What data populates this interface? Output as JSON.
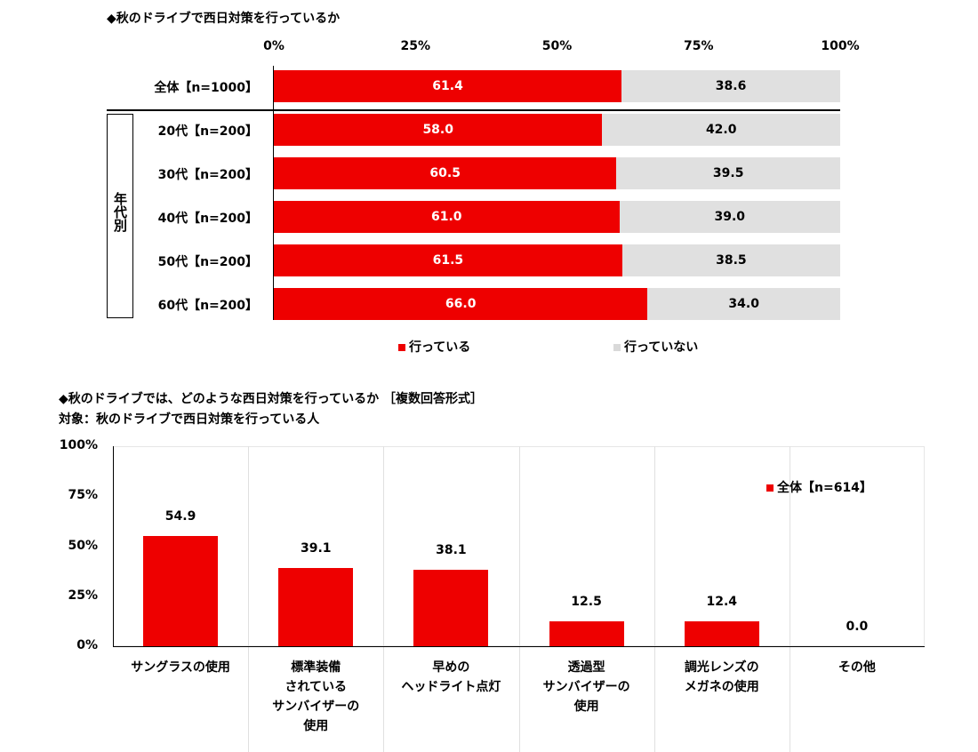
{
  "chart_data": [
    {
      "type": "bar",
      "orientation": "horizontal-stacked",
      "title": "◆秋のドライブで西日対策を行っているか",
      "xlim": [
        0,
        100
      ],
      "ticks": [
        "0%",
        "25%",
        "50%",
        "75%",
        "100%"
      ],
      "group_label": "年代別",
      "categories": [
        "全体【n=1000】",
        "20代【n=200】",
        "30代【n=200】",
        "40代【n=200】",
        "50代【n=200】",
        "60代【n=200】"
      ],
      "series": [
        {
          "name": "行っている",
          "color": "#ee0000",
          "values": [
            61.4,
            58.0,
            60.5,
            61.0,
            61.5,
            66.0
          ],
          "labels": [
            "61.4",
            "58.0",
            "60.5",
            "61.0",
            "61.5",
            "66.0"
          ]
        },
        {
          "name": "行っていない",
          "color": "#e0e0e0",
          "values": [
            38.6,
            42.0,
            39.5,
            39.0,
            38.5,
            34.0
          ],
          "labels": [
            "38.6",
            "42.0",
            "39.5",
            "39.0",
            "38.5",
            "34.0"
          ]
        }
      ],
      "legend_position": "bottom"
    },
    {
      "type": "bar",
      "title": "◆秋のドライブでは、どのような西日対策を行っているか ［複数回答形式］",
      "subtitle": "対象：秋のドライブで西日対策を行っている人",
      "ylim": [
        0,
        100
      ],
      "ticks": [
        "100%",
        "75%",
        "50%",
        "25%",
        "0%"
      ],
      "categories": [
        "サングラスの使用",
        "標準装備 されている サンバイザーの 使用",
        "早めの ヘッドライト点灯",
        "透過型 サンバイザーの 使用",
        "調光レンズの メガネの使用",
        "その他"
      ],
      "category_lines": [
        [
          "サングラスの使用"
        ],
        [
          "標準装備",
          "されている",
          "サンバイザーの",
          "使用"
        ],
        [
          "早めの",
          "ヘッドライト点灯"
        ],
        [
          "透過型",
          "サンバイザーの",
          "使用"
        ],
        [
          "調光レンズの",
          "メガネの使用"
        ],
        [
          "その他"
        ]
      ],
      "series": [
        {
          "name": "全体【n=614】",
          "color": "#ee0000",
          "values": [
            54.9,
            39.1,
            38.1,
            12.5,
            12.4,
            0.0
          ],
          "labels": [
            "54.9",
            "39.1",
            "38.1",
            "12.5",
            "12.4",
            "0.0"
          ]
        }
      ],
      "legend_position": "top-right",
      "grid": "vertical-separators"
    }
  ]
}
